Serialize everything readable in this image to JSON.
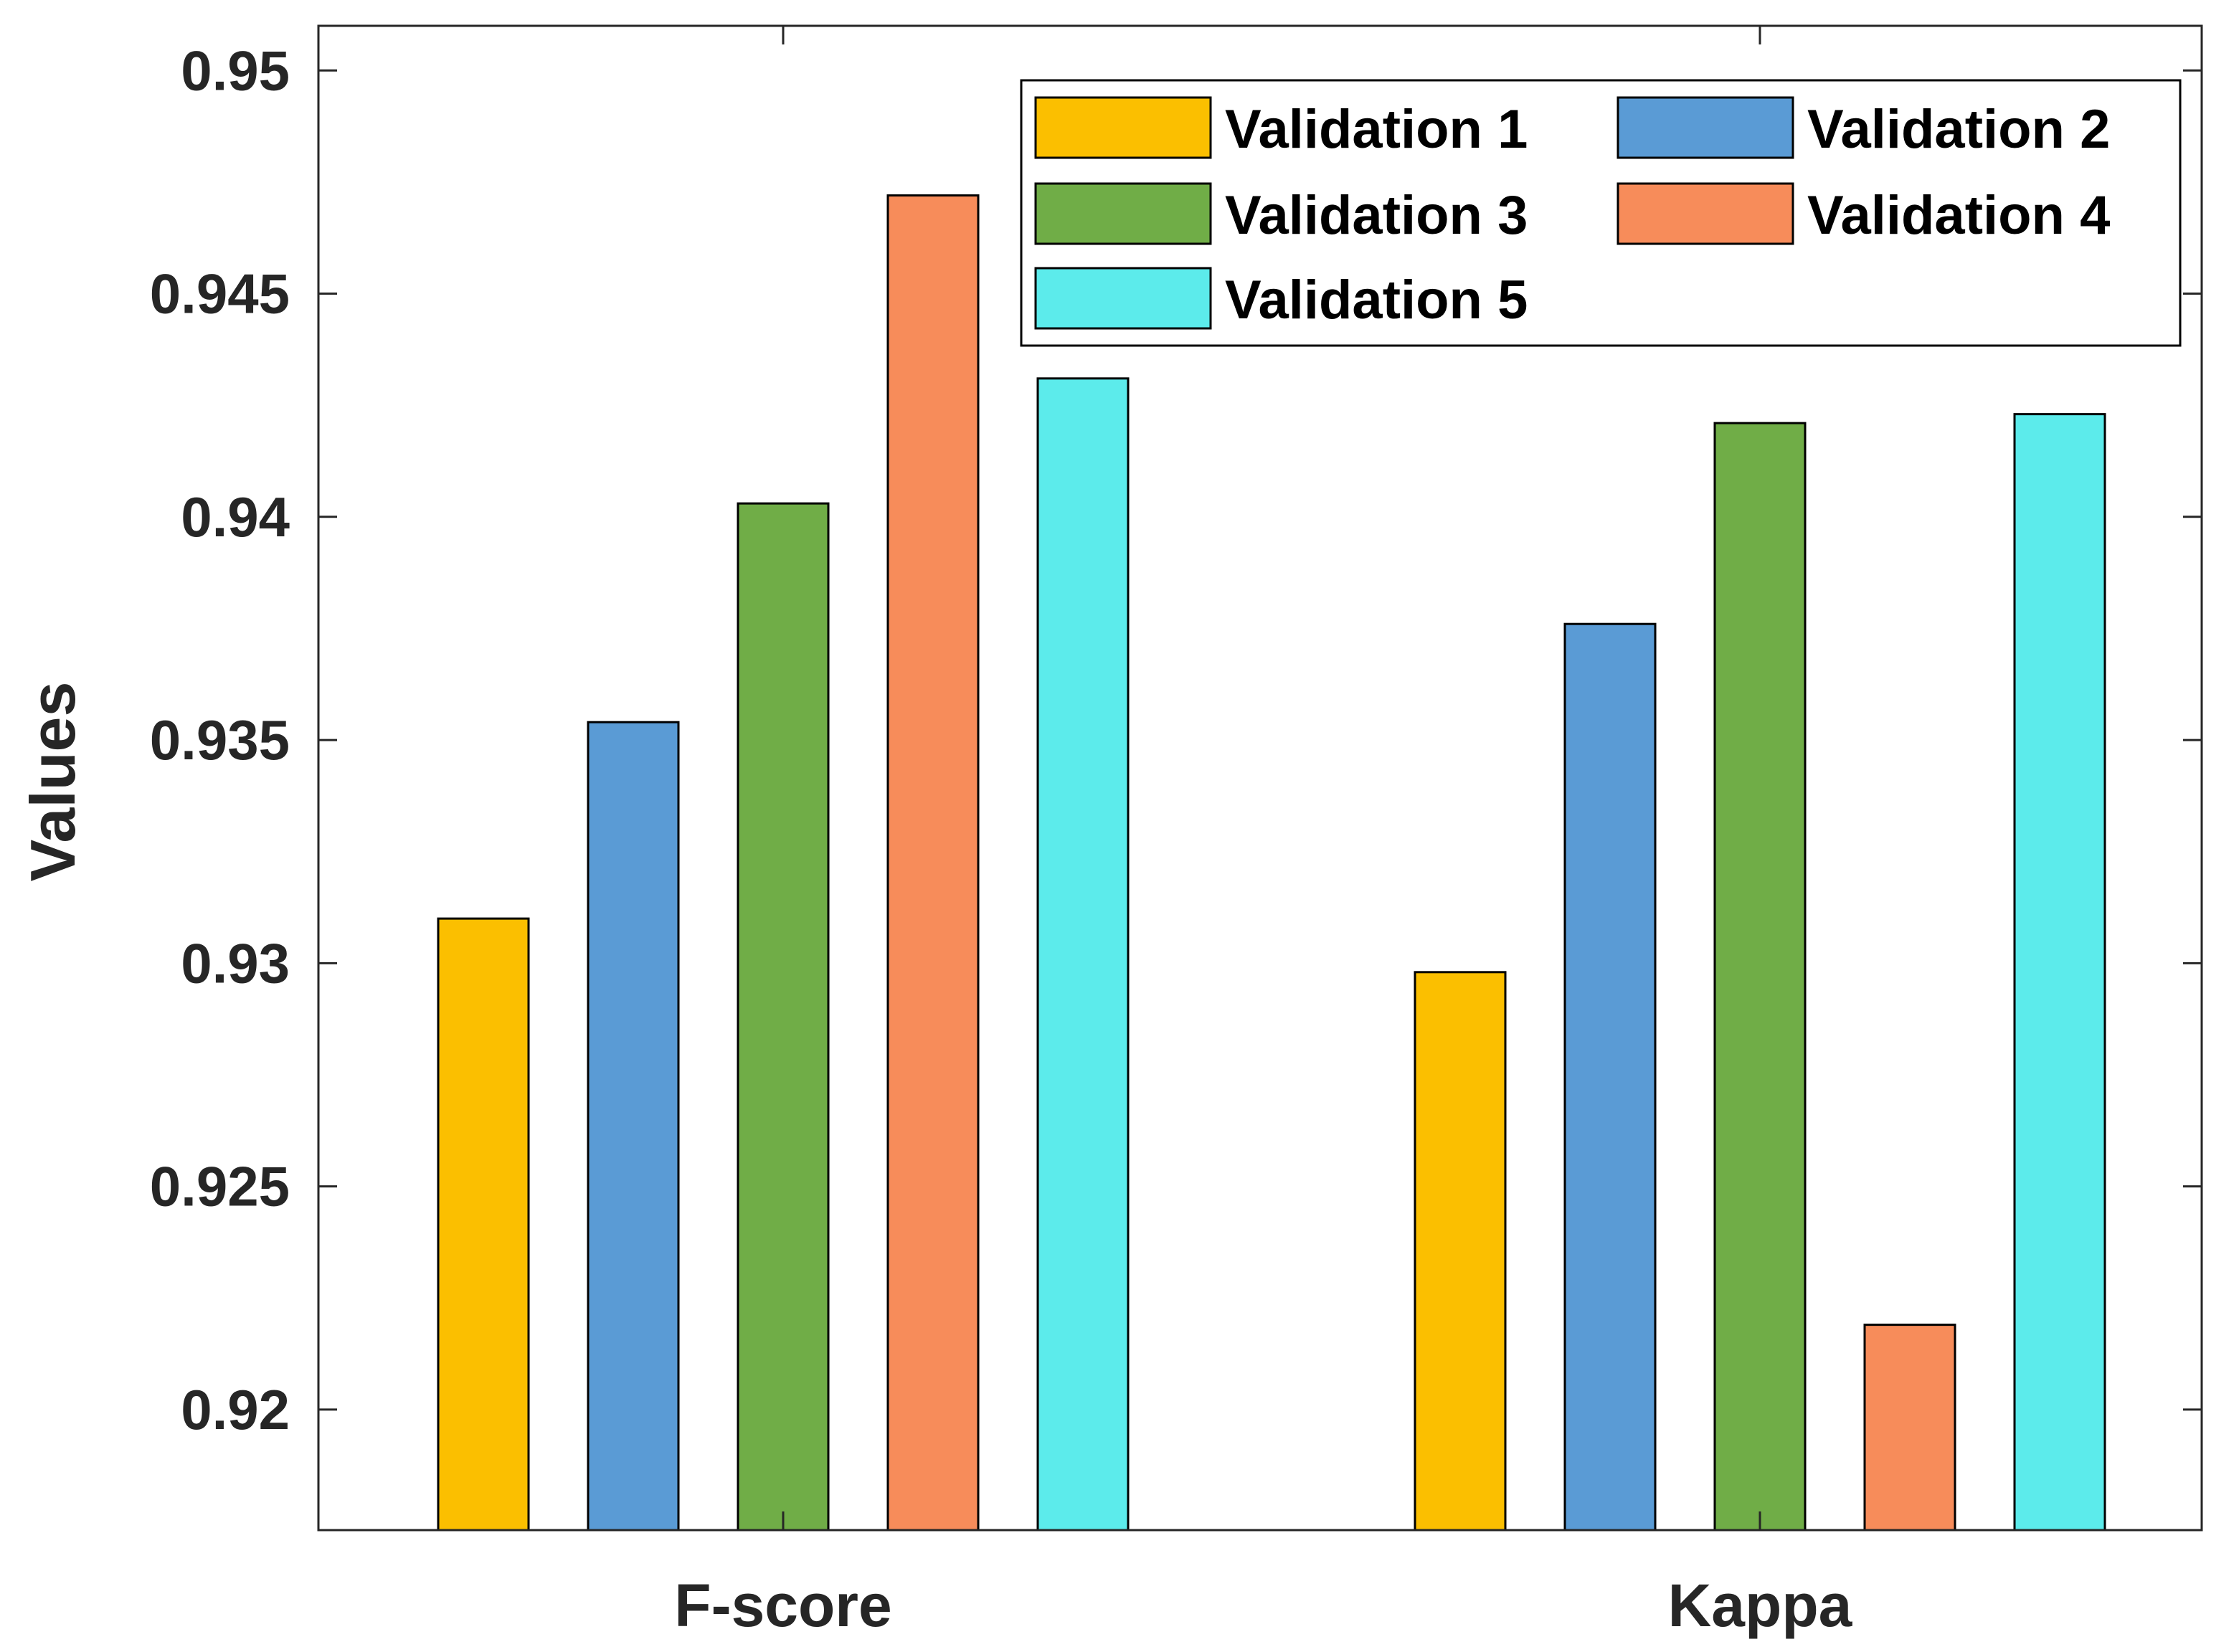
{
  "chart_data": {
    "type": "bar",
    "title": "",
    "xlabel": "",
    "ylabel": "Values",
    "categories": [
      "F-score",
      "Kappa"
    ],
    "ylim": [
      0.9173,
      0.951
    ],
    "yticks": [
      "0.92",
      "0.925",
      "0.93",
      "0.935",
      "0.94",
      "0.945",
      "0.95"
    ],
    "series": [
      {
        "name": "Validation 1",
        "color": "#FBBF00",
        "values": [
          0.931,
          0.9298
        ]
      },
      {
        "name": "Validation 2",
        "color": "#5A9BD5",
        "values": [
          0.9354,
          0.9376
        ]
      },
      {
        "name": "Validation 3",
        "color": "#70AD47",
        "values": [
          0.9403,
          0.9421
        ]
      },
      {
        "name": "Validation 4",
        "color": "#F78C5A",
        "values": [
          0.9472,
          0.9219
        ]
      },
      {
        "name": "Validation 5",
        "color": "#5CEBEB",
        "values": [
          0.9431,
          0.9423
        ]
      }
    ],
    "legend_position": "top-right",
    "grid": false
  }
}
